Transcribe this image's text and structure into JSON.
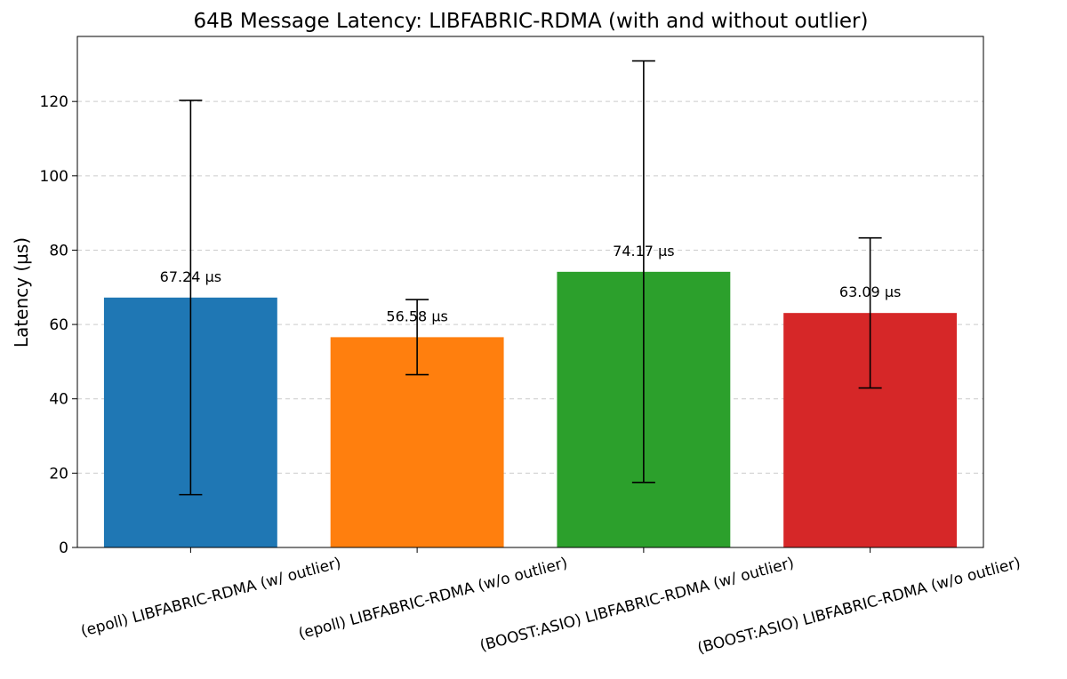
{
  "chart_data": {
    "type": "bar",
    "title": "64B Message Latency: LIBFABRIC-RDMA (with and without outlier)",
    "xlabel": "",
    "ylabel": "Latency (µs)",
    "categories": [
      "(epoll) LIBFABRIC-RDMA (w/ outlier)",
      "(epoll) LIBFABRIC-RDMA (w/o outlier)",
      "(BOOST:ASIO) LIBFABRIC-RDMA (w/ outlier)",
      "(BOOST:ASIO) LIBFABRIC-RDMA (w/o outlier)"
    ],
    "values": [
      67.24,
      56.58,
      74.17,
      63.09
    ],
    "error_low": [
      14.2,
      46.5,
      17.5,
      42.9
    ],
    "error_high": [
      120.3,
      66.7,
      130.9,
      83.3
    ],
    "data_labels": [
      "67.24 µs",
      "56.58 µs",
      "74.17 µs",
      "63.09 µs"
    ],
    "colors": [
      "#1f77b4",
      "#ff7f0e",
      "#2ca02c",
      "#d62728"
    ],
    "ylim": [
      0,
      137.5
    ],
    "yticks": [
      0,
      20,
      40,
      60,
      80,
      100,
      120
    ],
    "grid": true,
    "grid_axis": "y",
    "legend": "none"
  }
}
